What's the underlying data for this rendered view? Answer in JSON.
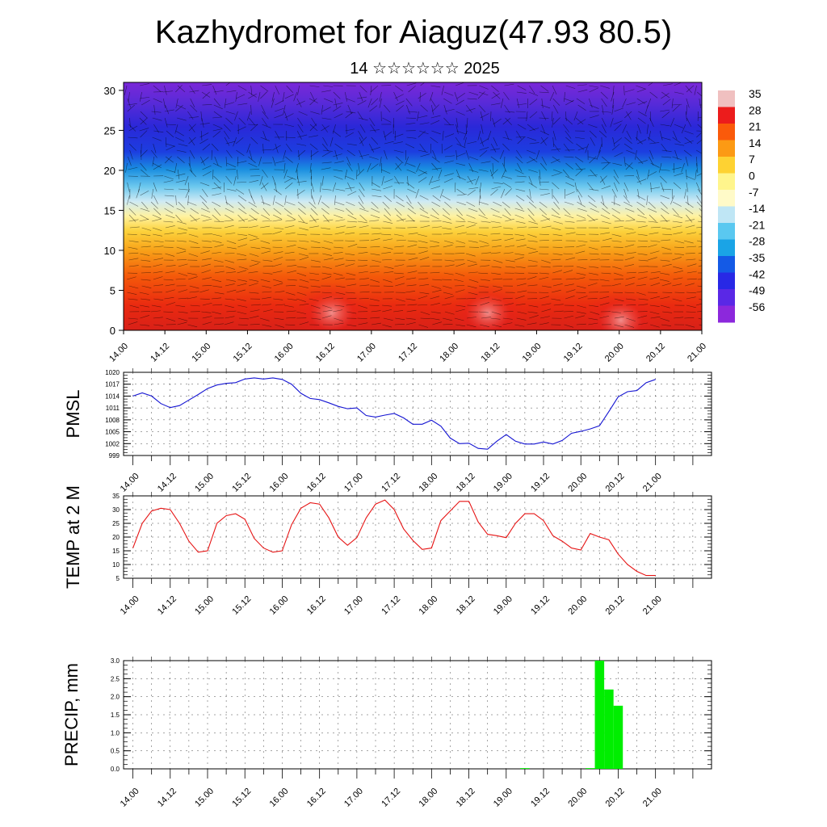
{
  "header": {
    "title": "Kazhydromet for Aiaguz(47.93 80.5)",
    "date": "14 ☆☆☆☆☆☆ 2025"
  },
  "time_ticks": [
    "14.00",
    "14.12",
    "15.00",
    "15.12",
    "16.00",
    "16.12",
    "17.00",
    "17.12",
    "18.00",
    "18.12",
    "19.00",
    "19.12",
    "20.00",
    "20.12",
    "21.00"
  ],
  "chart_data": [
    {
      "type": "heatmap",
      "name": "cross-section",
      "ylim": [
        0,
        31
      ],
      "yticks": [
        0,
        5,
        10,
        15,
        20,
        25,
        30
      ],
      "colorbar_labels": [
        "35",
        "28",
        "21",
        "14",
        "7",
        "0",
        "-7",
        "-14",
        "-21",
        "-28",
        "-35",
        "-42",
        "-49",
        "-56"
      ],
      "colorbar_colors": [
        "#f0c0c0",
        "#ec1c1c",
        "#fa5a0a",
        "#fc9a14",
        "#fed232",
        "#fff58c",
        "#fffac8",
        "#bfe6f5",
        "#5ac8f0",
        "#1aa4e6",
        "#145ae6",
        "#2828e6",
        "#5a28e6",
        "#8c28dc"
      ],
      "color_range": [
        -60,
        40
      ]
    },
    {
      "type": "line",
      "name": "pmsl",
      "ylabel": "PMSL",
      "ylim": [
        999,
        1020
      ],
      "yticks": [
        999,
        1002,
        1005,
        1008,
        1011,
        1014,
        1017,
        1020
      ],
      "color": "#1414d2",
      "x": [
        0,
        3,
        6,
        9,
        12,
        15,
        18,
        21,
        24,
        27,
        30,
        33,
        36,
        39,
        42,
        45,
        48,
        51,
        54,
        57,
        60,
        63,
        66,
        69,
        72,
        75,
        78,
        81,
        84,
        87,
        90,
        93,
        96,
        99,
        102,
        105,
        108,
        111,
        114,
        117,
        120,
        123,
        126,
        129,
        132,
        135,
        138,
        141,
        144,
        147,
        150,
        153,
        156,
        159,
        162,
        165,
        168
      ],
      "values": [
        1014,
        1014.8,
        1014,
        1012.1,
        1011.1,
        1011.6,
        1013,
        1014.4,
        1015.9,
        1016.8,
        1017.2,
        1017.4,
        1018.3,
        1018.6,
        1018.3,
        1018.6,
        1018.2,
        1017,
        1014.7,
        1013.4,
        1013.1,
        1012.3,
        1011.4,
        1010.8,
        1011,
        1009.1,
        1008.7,
        1009.2,
        1009.6,
        1008.5,
        1006.9,
        1006.9,
        1007.9,
        1006.4,
        1003.4,
        1002,
        1002.1,
        1000.8,
        1000.6,
        1002.6,
        1004.3,
        1002.6,
        1001.9,
        1001.9,
        1002.4,
        1001.9,
        1002.8,
        1004.6,
        1005.1,
        1005.7,
        1006.5,
        1010.1,
        1013.8,
        1015.1,
        1015.4,
        1017.4,
        1018.2
      ],
      "xlim": [
        -3,
        186
      ]
    },
    {
      "type": "line",
      "name": "temperature",
      "ylabel": "TEMP at 2 M",
      "ylim": [
        5,
        35
      ],
      "yticks": [
        5,
        10,
        15,
        20,
        25,
        30,
        35
      ],
      "color": "#e61414",
      "x": [
        0,
        3,
        6,
        9,
        12,
        15,
        18,
        21,
        24,
        27,
        30,
        33,
        36,
        39,
        42,
        45,
        48,
        51,
        54,
        57,
        60,
        63,
        66,
        69,
        72,
        75,
        78,
        81,
        84,
        87,
        90,
        93,
        96,
        99,
        102,
        105,
        108,
        111,
        114,
        117,
        120,
        123,
        126,
        129,
        132,
        135,
        138,
        141,
        144,
        147,
        150,
        153,
        156,
        159,
        162,
        165,
        168
      ],
      "values": [
        16,
        25,
        29.5,
        30.5,
        30,
        25,
        18.5,
        14.5,
        15,
        25,
        27.8,
        28.5,
        26.5,
        19.5,
        16,
        14.5,
        15,
        24.5,
        30.5,
        32.5,
        32,
        27,
        20,
        17,
        19.8,
        27,
        32,
        33.5,
        30,
        23,
        18.8,
        15.5,
        16,
        26,
        29.5,
        33,
        33,
        25.5,
        21,
        20.5,
        19.8,
        25,
        28.5,
        28.5,
        26,
        20.5,
        18.5,
        16,
        15.3,
        21.3,
        20,
        19,
        13.8,
        10,
        7.5,
        6,
        6
      ],
      "xlim": [
        -3,
        186
      ]
    },
    {
      "type": "bar",
      "name": "precipitation",
      "ylabel": "PRECIP, mm",
      "ylim": [
        0,
        3.0
      ],
      "yticks": [
        "0.0",
        "0.5",
        "1.0",
        "1.5",
        "2.0",
        "2.5",
        "3.0"
      ],
      "color": "#00ee00",
      "x": [
        126,
        147,
        150,
        153,
        156
      ],
      "values": [
        0.02,
        0.02,
        3.0,
        2.2,
        1.75
      ],
      "xlim": [
        -3,
        186
      ]
    }
  ]
}
